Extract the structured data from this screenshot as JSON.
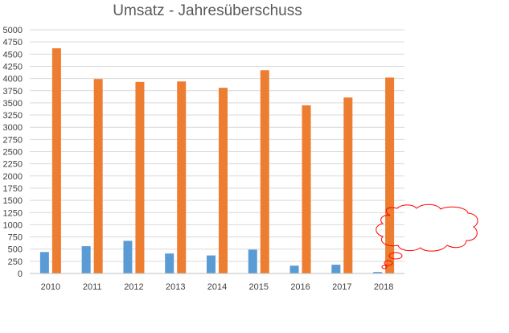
{
  "chart_data": {
    "type": "bar",
    "title": "Umsatz - Jahresüberschuss",
    "xlabel": "",
    "ylabel": "",
    "categories": [
      "2010",
      "2011",
      "2012",
      "2013",
      "2014",
      "2015",
      "2016",
      "2017",
      "2018"
    ],
    "series": [
      {
        "values": [
          440,
          560,
          670,
          410,
          370,
          490,
          160,
          180,
          30
        ],
        "color": "#5b9bd5"
      },
      {
        "values": [
          4620,
          3990,
          3930,
          3940,
          3810,
          4170,
          3450,
          3610,
          4020
        ],
        "color": "#ed7d31"
      }
    ],
    "ylim": [
      0,
      5000
    ],
    "ytick_step": 250,
    "grid": true,
    "legend": "none"
  },
  "annotation": {
    "shape": "cloud-callout",
    "color": "#ff0000"
  }
}
